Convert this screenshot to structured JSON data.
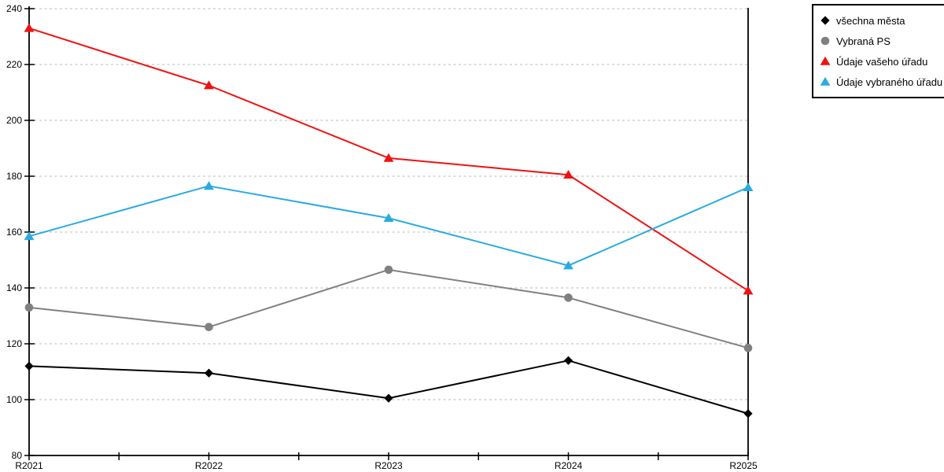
{
  "chart_data": {
    "type": "line",
    "title": "",
    "xlabel": "",
    "ylabel": "",
    "categories": [
      "R2021",
      "R2022",
      "R2023",
      "R2024",
      "R2025"
    ],
    "series": [
      {
        "name": "všechna města",
        "marker": "diamond",
        "color": "#000000",
        "values": [
          112,
          109.5,
          100.5,
          114,
          95
        ]
      },
      {
        "name": "Vybraná PS",
        "marker": "circle",
        "color": "#808080",
        "values": [
          133,
          126,
          146.5,
          136.5,
          118.5
        ]
      },
      {
        "name": "Údaje vašeho úřadu",
        "marker": "triangle",
        "color": "#f01111",
        "values": [
          233,
          212.5,
          186.5,
          180.5,
          139
        ]
      },
      {
        "name": "Údaje vybraného úřadu",
        "marker": "triangle",
        "color": "#29abe2",
        "values": [
          158.5,
          176.5,
          165,
          148,
          176
        ]
      }
    ],
    "ylim": [
      80,
      240
    ],
    "ytick_step": 20,
    "grid": "horizontal-dashed",
    "legend_position": "top-right-outside"
  },
  "colors": {
    "background": "#ffffff",
    "axis": "#000000",
    "grid": "#c8c8c8",
    "legend_border": "#000000"
  }
}
